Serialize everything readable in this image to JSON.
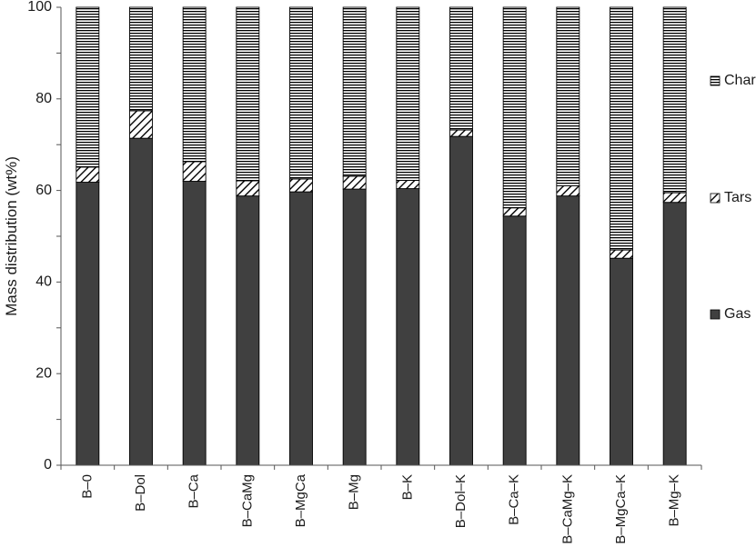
{
  "chart_data": {
    "type": "bar",
    "stacked": true,
    "categories": [
      "B–0",
      "B–Dol",
      "B–Ca",
      "B–CaMg",
      "B–MgCa",
      "B–Mg",
      "B–K",
      "B–Dol–K",
      "B–Ca–K",
      "B–CaMg–K",
      "B–MgCa–K",
      "B–Mg–K"
    ],
    "series": [
      {
        "name": "Gas",
        "values": [
          61.8,
          71.4,
          62.0,
          58.8,
          59.7,
          60.3,
          60.4,
          71.8,
          54.4,
          58.8,
          45.2,
          57.4
        ],
        "fill": "dark",
        "color": "#404040"
      },
      {
        "name": "Tars",
        "values": [
          3.3,
          6.0,
          4.3,
          3.3,
          2.8,
          2.8,
          1.8,
          1.4,
          1.8,
          2.2,
          1.8,
          2.1
        ],
        "fill": "diagonal-hatch",
        "color": "#000000"
      },
      {
        "name": "Char",
        "values": [
          34.9,
          22.6,
          33.7,
          37.9,
          37.5,
          36.9,
          37.8,
          26.8,
          43.8,
          39.0,
          53.0,
          40.5
        ],
        "fill": "horizontal-lines",
        "color": "#000000"
      }
    ],
    "title": "",
    "xlabel": "",
    "ylabel": "Mass distribution (wt%)",
    "ylim": [
      0,
      100
    ],
    "yticks": [
      0,
      20,
      40,
      60,
      80,
      100
    ],
    "grid": false,
    "legend_position": "right",
    "legend_order": [
      "Char",
      "Tars",
      "Gas"
    ]
  }
}
